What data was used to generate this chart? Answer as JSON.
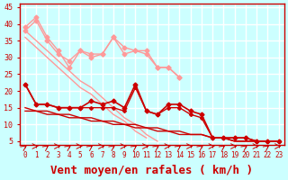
{
  "title": "",
  "xlabel": "Vent moyen/en rafales ( km/h )",
  "xlabel_color": "#cc0000",
  "xlabel_fontsize": 9,
  "bg_color": "#ccffff",
  "grid_color": "#ffffff",
  "yticks": [
    5,
    10,
    15,
    20,
    25,
    30,
    35,
    40,
    45
  ],
  "xticks": [
    0,
    1,
    2,
    3,
    4,
    5,
    6,
    7,
    8,
    9,
    10,
    11,
    12,
    13,
    14,
    15,
    16,
    17,
    18,
    19,
    20,
    21,
    22,
    23
  ],
  "xlim": [
    -0.5,
    23.5
  ],
  "ylim": [
    4,
    46
  ],
  "x": [
    0,
    1,
    2,
    3,
    4,
    5,
    6,
    7,
    8,
    9,
    10,
    11,
    12,
    13,
    14,
    15,
    16,
    17,
    18,
    19,
    20,
    21,
    22,
    23
  ],
  "line1": [
    39,
    42,
    36,
    32,
    27,
    32,
    31,
    31,
    36,
    33,
    32,
    32,
    27,
    27,
    24,
    null,
    null,
    null,
    null,
    null,
    null,
    null,
    null,
    null
  ],
  "line2": [
    38,
    41,
    35,
    31,
    29,
    32,
    30,
    31,
    36,
    31,
    32,
    31,
    27,
    27,
    24,
    null,
    null,
    null,
    null,
    null,
    null,
    null,
    null,
    null
  ],
  "line3_trend1": [
    38,
    35,
    32,
    29,
    26,
    23,
    21,
    18,
    15,
    12,
    10,
    7,
    5,
    null,
    null,
    null,
    null,
    null,
    null,
    null,
    null,
    null,
    null,
    null
  ],
  "line4_trend2": [
    36,
    33,
    30,
    27,
    24,
    21,
    19,
    16,
    13,
    11,
    8,
    6,
    null,
    null,
    null,
    null,
    null,
    null,
    null,
    null,
    null,
    null,
    null,
    null
  ],
  "line5": [
    22,
    16,
    16,
    15,
    15,
    15,
    17,
    16,
    17,
    15,
    22,
    14,
    13,
    16,
    16,
    14,
    13,
    6,
    6,
    6,
    6,
    5,
    5,
    5
  ],
  "line6": [
    22,
    16,
    16,
    15,
    15,
    15,
    15,
    15,
    15,
    14,
    21,
    14,
    13,
    15,
    15,
    13,
    12,
    6,
    6,
    6,
    6,
    5,
    5,
    5
  ],
  "trend_a": [
    15,
    14,
    14,
    13,
    13,
    12,
    12,
    11,
    11,
    10,
    10,
    9,
    9,
    8,
    8,
    7,
    7,
    6,
    6,
    5,
    5,
    5,
    5,
    5
  ],
  "trend_b": [
    14,
    14,
    13,
    13,
    12,
    12,
    11,
    11,
    10,
    10,
    9,
    9,
    8,
    8,
    7,
    7,
    7,
    6,
    6,
    5,
    5,
    5,
    5,
    5
  ],
  "color_dark_red": "#cc0000",
  "color_light_pink": "#ff9999",
  "color_mid_pink": "#ff6666",
  "arrow_color": "#cc0000",
  "tick_color": "#cc0000",
  "axis_color": "#cc0000"
}
